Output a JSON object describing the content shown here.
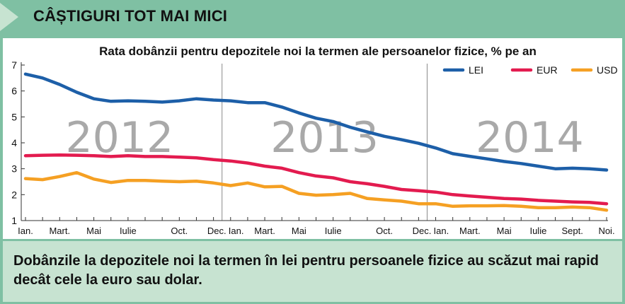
{
  "header": {
    "title": "CÂȘTIGURI TOT MAI MICI"
  },
  "footer": {
    "text": "Dobânzile la depozitele noi la termen în lei pentru persoanele fizice au scăzut mai rapid decât cele la euro sau dolar."
  },
  "colors": {
    "background": "#7fc0a3",
    "panel": "#ffffff",
    "footer": "#c7e3d1",
    "lei": "#1d5fa8",
    "eur": "#e31b4f",
    "usd": "#f5a023",
    "year_watermark": "#a9a9a9"
  },
  "chart_data": {
    "type": "line",
    "title": "Rata dobânzii pentru depozitele noi la termen ale persoanelor fizice, % pe an",
    "xlabel": "",
    "ylabel": "",
    "ylim": [
      1,
      7
    ],
    "yticks": [
      "1",
      "2",
      "3",
      "4",
      "5",
      "6",
      "7"
    ],
    "grid": false,
    "legend_position": "top-right",
    "x_tick_labels": [
      "Ian.",
      "Mart.",
      "Mai",
      "Iulie",
      "Oct.",
      "Dec.",
      "Ian.",
      "Mart.",
      "Mai",
      "Iulie",
      "Oct.",
      "Dec.",
      "Ian.",
      "Mart.",
      "Mai",
      "Iulie",
      "Sept.",
      "Noi."
    ],
    "x_tick_positions": [
      1,
      3,
      5,
      7,
      10,
      12,
      13,
      15,
      17,
      19,
      22,
      24,
      25,
      27,
      29,
      31,
      33,
      35
    ],
    "year_labels": [
      {
        "label": "2012",
        "center_month": 6.5
      },
      {
        "label": "2013",
        "center_month": 18.5
      },
      {
        "label": "2014",
        "center_month": 30.5
      }
    ],
    "year_dividers": [
      12.5,
      24.5
    ],
    "series": [
      {
        "name": "LEI",
        "color": "#1d5fa8",
        "values": [
          6.65,
          6.5,
          6.25,
          5.95,
          5.7,
          5.6,
          5.62,
          5.6,
          5.57,
          5.62,
          5.7,
          5.65,
          5.62,
          5.55,
          5.55,
          5.38,
          5.15,
          4.95,
          4.82,
          4.6,
          4.42,
          4.25,
          4.12,
          3.98,
          3.8,
          3.58,
          3.48,
          3.38,
          3.28,
          3.2,
          3.1,
          3.0,
          3.02,
          3.0,
          2.95
        ]
      },
      {
        "name": "EUR",
        "color": "#e31b4f",
        "values": [
          3.5,
          3.52,
          3.53,
          3.52,
          3.5,
          3.47,
          3.5,
          3.47,
          3.47,
          3.45,
          3.42,
          3.35,
          3.3,
          3.22,
          3.1,
          3.02,
          2.85,
          2.72,
          2.65,
          2.5,
          2.42,
          2.32,
          2.2,
          2.15,
          2.1,
          2.0,
          1.95,
          1.9,
          1.85,
          1.83,
          1.78,
          1.75,
          1.72,
          1.7,
          1.65
        ]
      },
      {
        "name": "USD",
        "color": "#f5a023",
        "values": [
          2.62,
          2.58,
          2.7,
          2.85,
          2.6,
          2.47,
          2.55,
          2.55,
          2.52,
          2.5,
          2.52,
          2.45,
          2.35,
          2.45,
          2.3,
          2.32,
          2.05,
          1.98,
          2.0,
          2.05,
          1.85,
          1.8,
          1.75,
          1.65,
          1.65,
          1.55,
          1.57,
          1.57,
          1.58,
          1.55,
          1.5,
          1.5,
          1.52,
          1.5,
          1.4
        ]
      }
    ]
  }
}
